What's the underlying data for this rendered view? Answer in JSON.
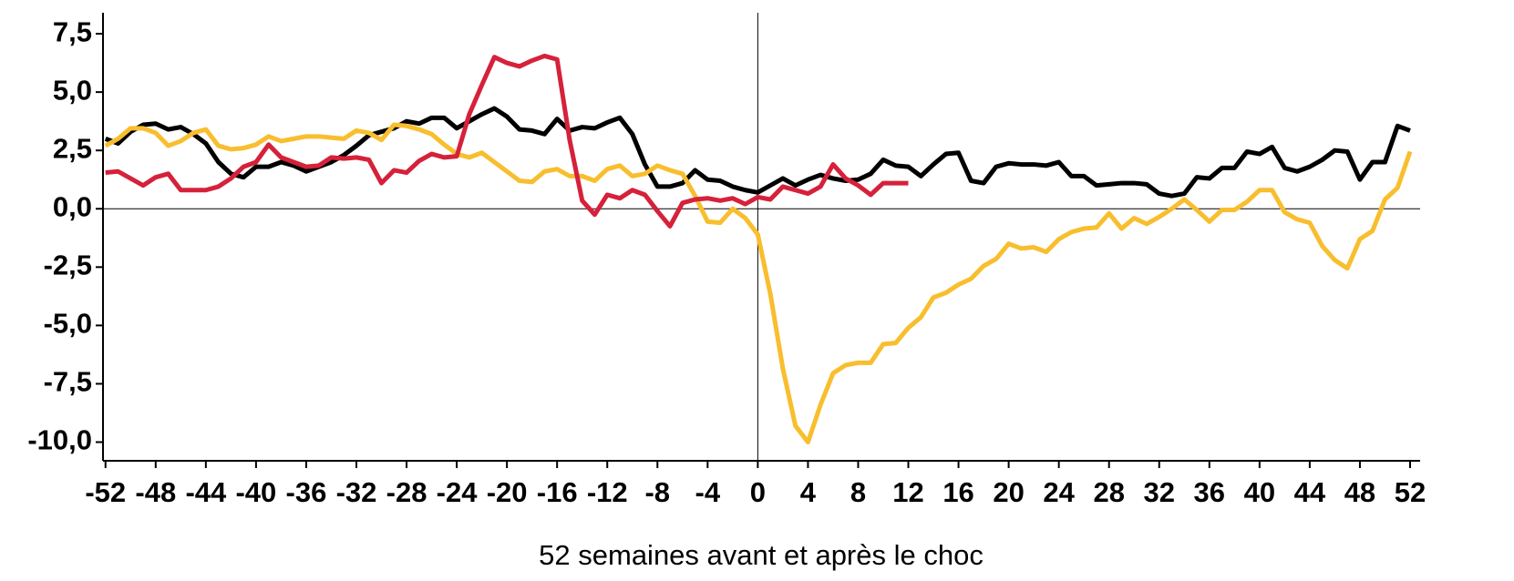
{
  "chart_data": {
    "type": "line",
    "xlabel": "52 semaines avant et après le choc",
    "x": [
      -52,
      -51,
      -50,
      -49,
      -48,
      -47,
      -46,
      -45,
      -44,
      -43,
      -42,
      -41,
      -40,
      -39,
      -38,
      -37,
      -36,
      -35,
      -34,
      -33,
      -32,
      -31,
      -30,
      -29,
      -28,
      -27,
      -26,
      -25,
      -24,
      -23,
      -22,
      -21,
      -20,
      -19,
      -18,
      -17,
      -16,
      -15,
      -14,
      -13,
      -12,
      -11,
      -10,
      -9,
      -8,
      -7,
      -6,
      -5,
      -4,
      -3,
      -2,
      -1,
      0,
      1,
      2,
      3,
      4,
      5,
      6,
      7,
      8,
      9,
      10,
      11,
      12,
      13,
      14,
      15,
      16,
      17,
      18,
      19,
      20,
      21,
      22,
      23,
      24,
      25,
      26,
      27,
      28,
      29,
      30,
      31,
      32,
      33,
      34,
      35,
      36,
      37,
      38,
      39,
      40,
      41,
      42,
      43,
      44,
      45,
      46,
      47,
      48,
      49,
      50,
      51,
      52
    ],
    "series": [
      {
        "color": "#000000",
        "values": [
          3.0,
          2.8,
          3.3,
          3.6,
          3.65,
          3.4,
          3.5,
          3.2,
          2.8,
          2.0,
          1.5,
          1.35,
          1.8,
          1.8,
          2.0,
          1.85,
          1.6,
          1.8,
          2.0,
          2.3,
          2.7,
          3.15,
          3.3,
          3.45,
          3.75,
          3.65,
          3.9,
          3.9,
          3.45,
          3.75,
          4.05,
          4.3,
          3.95,
          3.4,
          3.35,
          3.2,
          3.85,
          3.35,
          3.5,
          3.45,
          3.7,
          3.9,
          3.2,
          1.9,
          0.95,
          0.95,
          1.1,
          1.65,
          1.25,
          1.2,
          0.95,
          0.8,
          0.7,
          1.0,
          1.3,
          1.0,
          1.25,
          1.45,
          1.3,
          1.2,
          1.25,
          1.5,
          2.1,
          1.85,
          1.8,
          1.4,
          1.9,
          2.35,
          2.4,
          1.2,
          1.1,
          1.8,
          1.95,
          1.9,
          1.9,
          1.85,
          2.0,
          1.4,
          1.4,
          1.0,
          1.05,
          1.1,
          1.1,
          1.05,
          0.65,
          0.55,
          0.65,
          1.35,
          1.3,
          1.75,
          1.75,
          2.45,
          2.35,
          2.65,
          1.75,
          1.6,
          1.8,
          2.1,
          2.5,
          2.45,
          1.25,
          2.0,
          2.0,
          3.55,
          3.35
        ]
      },
      {
        "color": "#f8be2e",
        "values": [
          2.7,
          3.0,
          3.45,
          3.45,
          3.25,
          2.7,
          2.9,
          3.25,
          3.4,
          2.7,
          2.55,
          2.6,
          2.75,
          3.1,
          2.9,
          3.0,
          3.1,
          3.1,
          3.05,
          3.0,
          3.35,
          3.25,
          2.95,
          3.6,
          3.55,
          3.4,
          3.2,
          2.75,
          2.35,
          2.2,
          2.4,
          2.0,
          1.6,
          1.2,
          1.15,
          1.6,
          1.7,
          1.4,
          1.4,
          1.2,
          1.7,
          1.85,
          1.4,
          1.5,
          1.85,
          1.65,
          1.5,
          0.55,
          -0.55,
          -0.6,
          0.0,
          -0.4,
          -1.1,
          -3.65,
          -6.85,
          -9.3,
          -10.0,
          -8.4,
          -7.05,
          -6.7,
          -6.6,
          -6.6,
          -5.8,
          -5.75,
          -5.1,
          -4.65,
          -3.8,
          -3.6,
          -3.25,
          -3.0,
          -2.45,
          -2.15,
          -1.5,
          -1.7,
          -1.65,
          -1.85,
          -1.3,
          -1.0,
          -0.85,
          -0.8,
          -0.2,
          -0.85,
          -0.4,
          -0.65,
          -0.35,
          0.0,
          0.4,
          -0.05,
          -0.55,
          -0.05,
          -0.05,
          0.3,
          0.8,
          0.8,
          -0.15,
          -0.45,
          -0.6,
          -1.6,
          -2.2,
          -2.55,
          -1.3,
          -0.95,
          0.4,
          0.9,
          2.45
        ]
      },
      {
        "color": "#d6213a",
        "values": [
          1.55,
          1.6,
          1.3,
          1.0,
          1.35,
          1.5,
          0.8,
          0.8,
          0.8,
          0.95,
          1.3,
          1.8,
          2.0,
          2.75,
          2.2,
          2.0,
          1.8,
          1.85,
          2.2,
          2.15,
          2.2,
          2.1,
          1.1,
          1.65,
          1.55,
          2.05,
          2.35,
          2.2,
          2.25,
          4.05,
          5.3,
          6.5,
          6.25,
          6.1,
          6.35,
          6.55,
          6.4,
          2.95,
          0.35,
          -0.25,
          0.6,
          0.45,
          0.8,
          0.6,
          -0.1,
          -0.75,
          0.25,
          0.4,
          0.45,
          0.35,
          0.45,
          0.2,
          0.5,
          0.4,
          0.95,
          0.8,
          0.65,
          0.95,
          1.9,
          1.3,
          1.0,
          0.6,
          1.1,
          1.1,
          1.1,
          null,
          null,
          null,
          null,
          null,
          null,
          null,
          null,
          null,
          null,
          null,
          null,
          null,
          null,
          null,
          null,
          null,
          null,
          null,
          null,
          null,
          null,
          null,
          null,
          null,
          null,
          null,
          null,
          null,
          null,
          null,
          null,
          null,
          null,
          null,
          null,
          null,
          null,
          null,
          null
        ]
      }
    ],
    "xlim": [
      -52.2,
      52.8
    ],
    "ylim": [
      -10.8,
      8.4
    ],
    "xticks": [
      -52,
      -48,
      -44,
      -40,
      -36,
      -32,
      -28,
      -24,
      -20,
      -16,
      -12,
      -8,
      -4,
      0,
      4,
      8,
      12,
      16,
      20,
      24,
      28,
      32,
      36,
      40,
      44,
      48,
      52
    ],
    "yticks": [
      {
        "value": -10,
        "label": "-10,0"
      },
      {
        "value": -7.5,
        "label": "-7,5"
      },
      {
        "value": -5,
        "label": "-5,0"
      },
      {
        "value": -2.5,
        "label": "-2,5"
      },
      {
        "value": 0,
        "label": "0,0"
      },
      {
        "value": 2.5,
        "label": "2,5"
      },
      {
        "value": 5,
        "label": "5,0"
      },
      {
        "value": 7.5,
        "label": "7,5"
      }
    ]
  }
}
